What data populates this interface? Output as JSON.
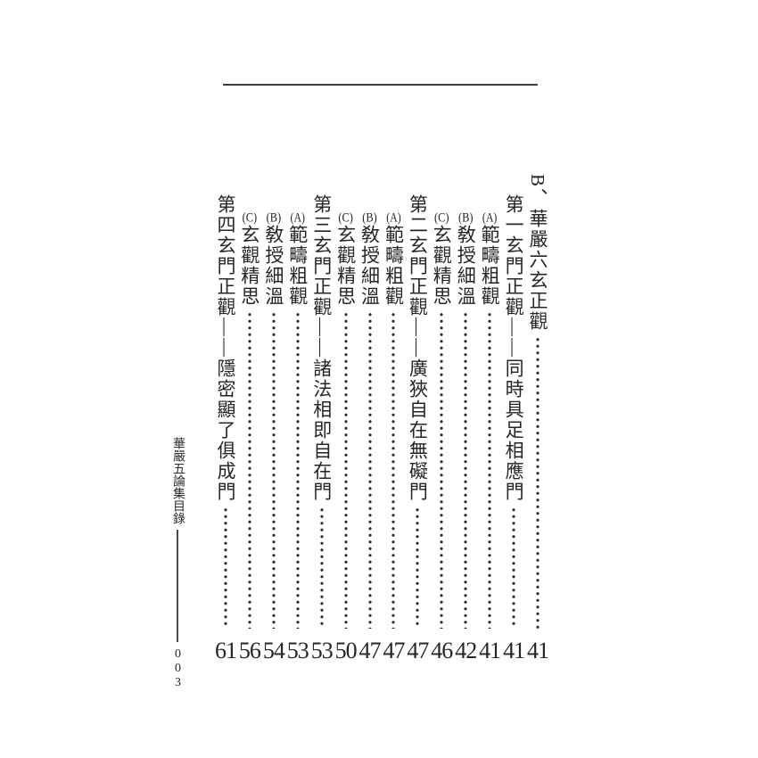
{
  "page": {
    "background": "#ffffff",
    "ink_color": "#262626",
    "rule_color": "#3d3d3d"
  },
  "toc": {
    "entries": [
      {
        "level": 0,
        "label": "",
        "text": "B、華嚴六玄正觀",
        "page": "41"
      },
      {
        "level": 1,
        "label": "",
        "text": "第一玄門正觀——同時具足相應門",
        "page": "41"
      },
      {
        "level": 2,
        "label": "(A)",
        "text": "範疇粗觀",
        "page": "41"
      },
      {
        "level": 2,
        "label": "(B)",
        "text": "敎授細溫",
        "page": "42"
      },
      {
        "level": 2,
        "label": "(C)",
        "text": "玄觀精思",
        "page": "46"
      },
      {
        "level": 1,
        "label": "",
        "text": "第二玄門正觀——廣狹自在無礙門",
        "page": "47"
      },
      {
        "level": 2,
        "label": "(A)",
        "text": "範疇粗觀",
        "page": "47"
      },
      {
        "level": 2,
        "label": "(B)",
        "text": "敎授細溫",
        "page": "47"
      },
      {
        "level": 2,
        "label": "(C)",
        "text": "玄觀精思",
        "page": "50"
      },
      {
        "level": 1,
        "label": "",
        "text": "第三玄門正觀——諸法相即自在門",
        "page": "53"
      },
      {
        "level": 2,
        "label": "(A)",
        "text": "範疇粗觀",
        "page": "53"
      },
      {
        "level": 2,
        "label": "(B)",
        "text": "敎授細溫",
        "page": "54"
      },
      {
        "level": 2,
        "label": "(C)",
        "text": "玄觀精思",
        "page": "56"
      },
      {
        "level": 1,
        "label": "",
        "text": "第四玄門正觀——隱密顯了俱成門",
        "page": "61"
      }
    ]
  },
  "sidebar": {
    "book_title": "華嚴五論集目錄",
    "page_number": "003"
  }
}
